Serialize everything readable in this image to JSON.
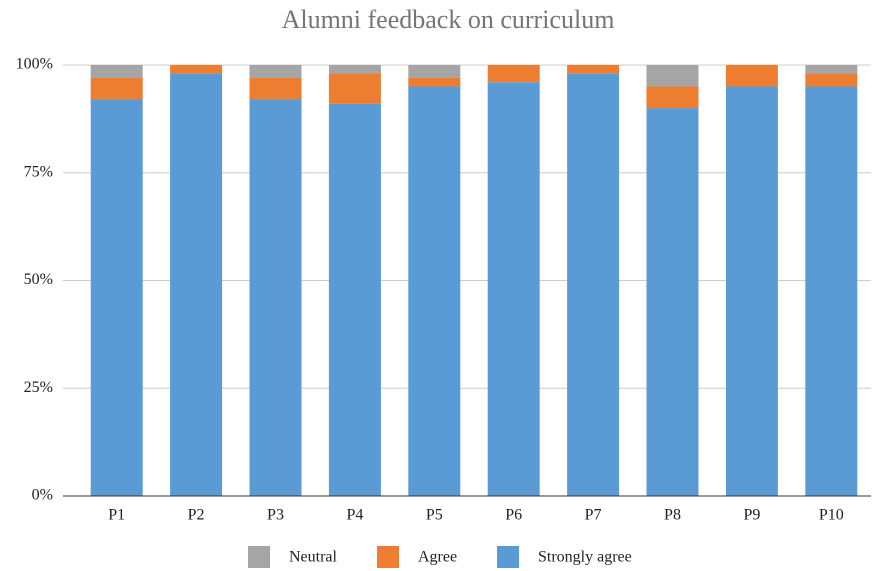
{
  "chart_data": {
    "type": "stacked_bar",
    "title": "Alumni feedback on curriculum",
    "categories": [
      "P1",
      "P2",
      "P3",
      "P4",
      "P5",
      "P6",
      "P7",
      "P8",
      "P9",
      "P10"
    ],
    "series": [
      {
        "name": "Neutral",
        "color": "#a5a5a5",
        "values": [
          3,
          0,
          3,
          2,
          3,
          0,
          0,
          5,
          0,
          2
        ]
      },
      {
        "name": "Agree",
        "color": "#ed7d31",
        "values": [
          5,
          2,
          5,
          7,
          2,
          4,
          2,
          5,
          5,
          3
        ]
      },
      {
        "name": "Strongly agree",
        "color": "#5b9bd5",
        "values": [
          92,
          98,
          92,
          91,
          95,
          96,
          98,
          90,
          95,
          95
        ]
      }
    ],
    "ylim": [
      0,
      100
    ],
    "yticks": [
      {
        "value": 0,
        "label": "0%"
      },
      {
        "value": 25,
        "label": "25%"
      },
      {
        "value": 50,
        "label": "50%"
      },
      {
        "value": 75,
        "label": "75%"
      },
      {
        "value": 100,
        "label": "100%"
      }
    ],
    "grid": true,
    "legend": "bottom"
  }
}
